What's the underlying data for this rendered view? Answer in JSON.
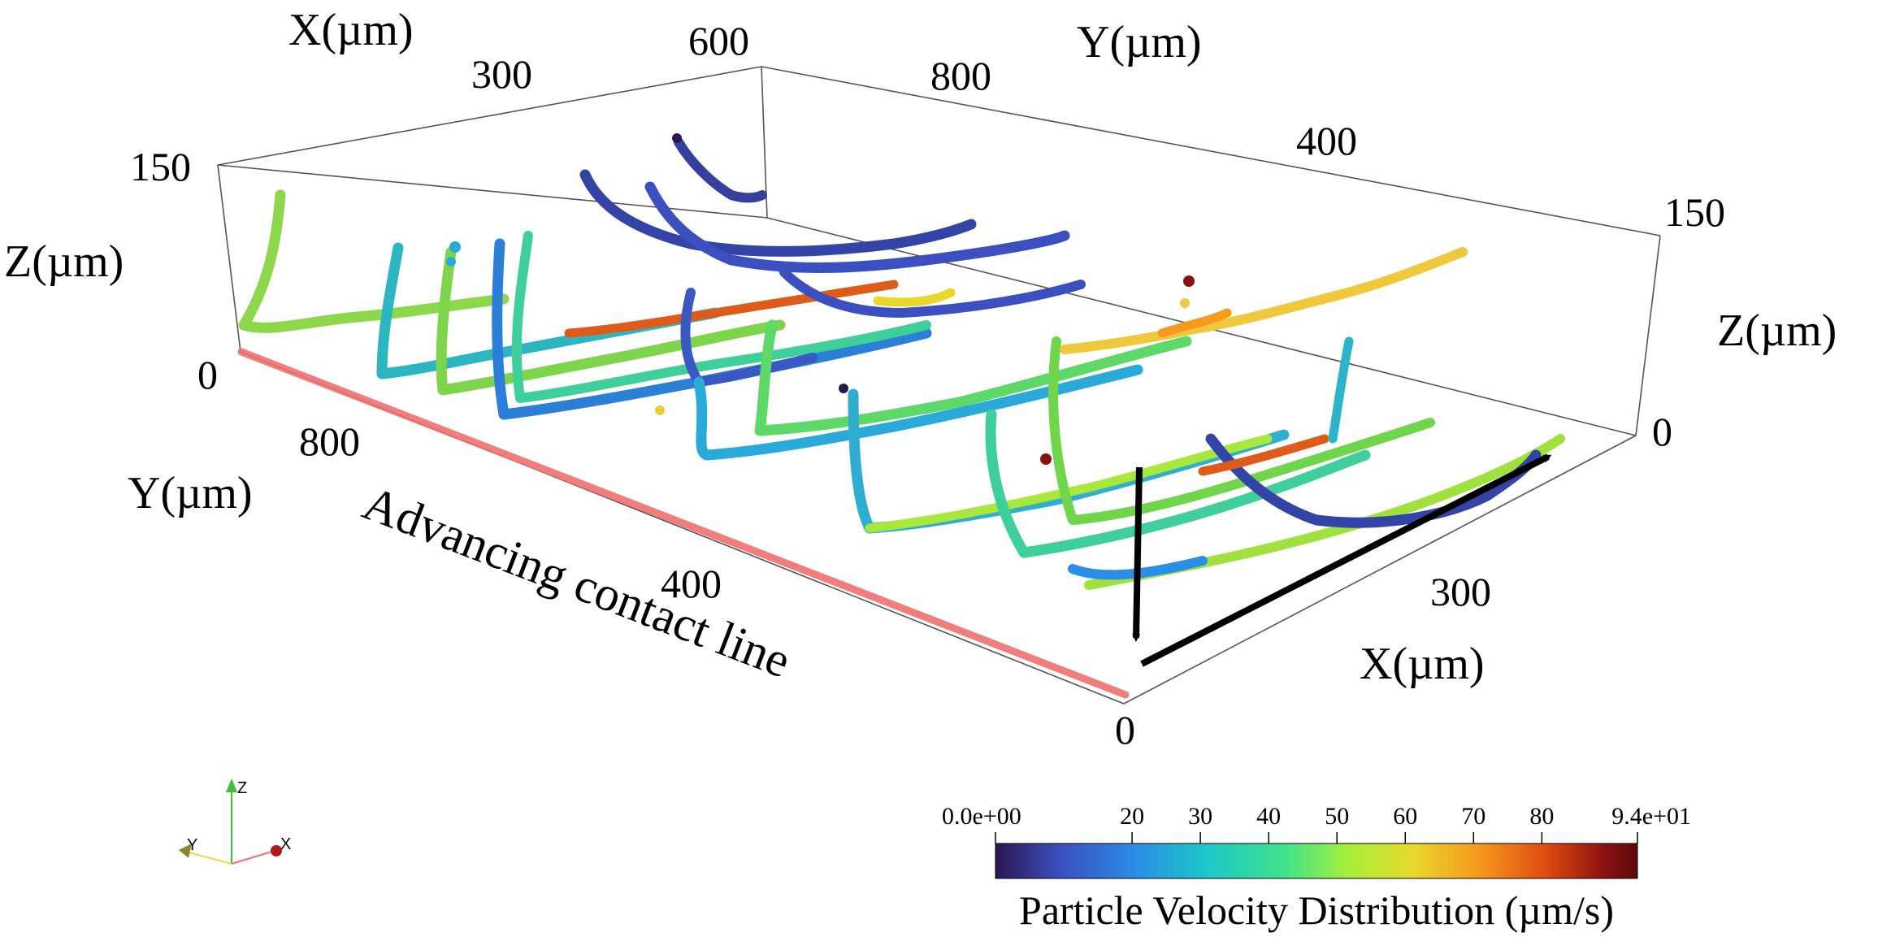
{
  "labels": {
    "x_axis_top": "X(µm)",
    "y_axis_top": "Y(µm)",
    "z_axis_left": "Z(µm)",
    "z_axis_right": "Z(µm)",
    "y_axis_bottom": "Y(µm)",
    "x_axis_bottom": "X(µm)",
    "contact_line": "Advancing contact line",
    "colorbar_title": "Particle Velocity Distribution (µm/s)"
  },
  "ticks": {
    "x_top": [
      "300",
      "600"
    ],
    "y_top": [
      "800",
      "400"
    ],
    "z_left": [
      "150",
      "0"
    ],
    "z_right": [
      "150",
      "0"
    ],
    "y_bottom": [
      "800",
      "400"
    ],
    "x_bottom": [
      "300",
      "0"
    ]
  },
  "orientation_widget": {
    "z": "Z",
    "y": "Y",
    "x": "X"
  },
  "colors": {
    "contact_line": "#f07070",
    "colormap": [
      "#2a1650",
      "#3b4fc0",
      "#2a8ee6",
      "#1cc8c8",
      "#3fe28a",
      "#a6f03a",
      "#e8d82c",
      "#f79a1e",
      "#dd4a10",
      "#8a1010",
      "#5a0a0a"
    ]
  },
  "chart_data": {
    "type": "3d-trajectories",
    "title": "",
    "xlabel": "X(µm)",
    "ylabel": "Y(µm)",
    "zlabel": "Z(µm)",
    "x_ticks": [
      0,
      300,
      600
    ],
    "y_ticks": [
      400,
      800
    ],
    "z_ticks": [
      0,
      150
    ],
    "colorbar": {
      "label": "Particle Velocity Distribution (µm/s)",
      "range": [
        0,
        94
      ],
      "tick_values": [
        0,
        20,
        30,
        40,
        50,
        60,
        70,
        80,
        94
      ],
      "tick_labels": [
        "0.0e+00",
        "20",
        "30",
        "40",
        "50",
        "60",
        "70",
        "80",
        "9.4e+01"
      ]
    }
  }
}
